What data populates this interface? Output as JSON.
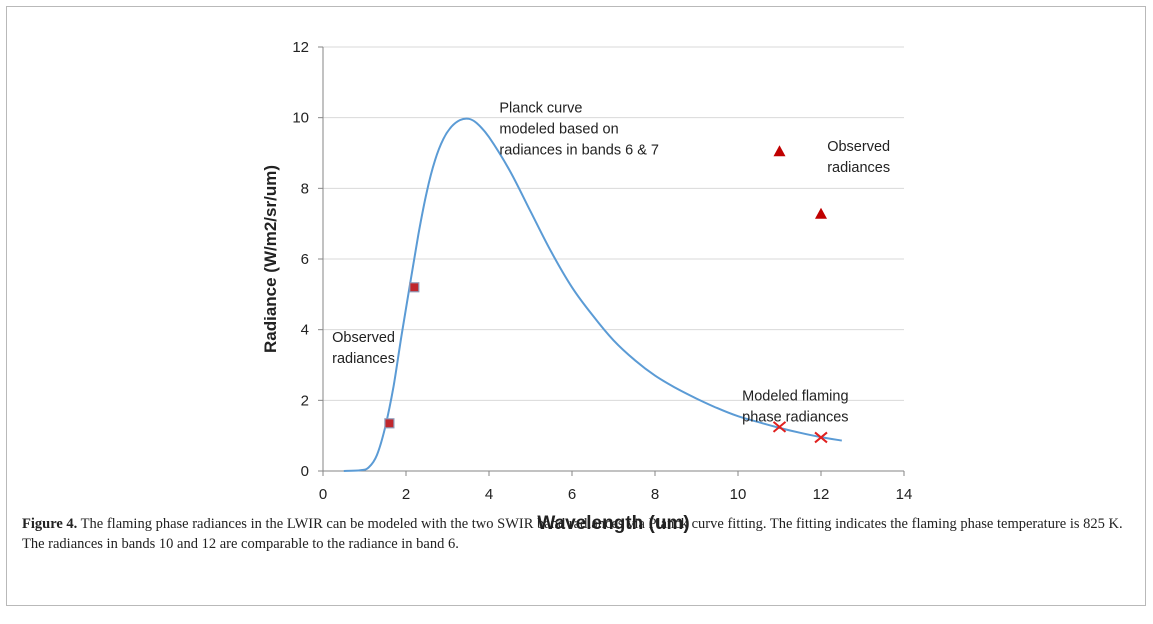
{
  "caption": {
    "label": "Figure 4.",
    "text": " The flaming phase radiances in the LWIR can be modeled with the two SWIR band radiances via Planck curve fitting. The fitting indicates the flaming phase temperature is 825 K. The radiances in bands 10 and 12 are comparable to the radiance in band 6."
  },
  "chart_data": {
    "type": "scatter",
    "title": "",
    "xlabel": "Wavelength (um)",
    "ylabel": "Radiance (W/m2/sr/um)",
    "xlim": [
      0,
      14
    ],
    "ylim": [
      0,
      12
    ],
    "xticks": [
      0,
      2,
      4,
      6,
      8,
      10,
      12,
      14
    ],
    "yticks": [
      0,
      2,
      4,
      6,
      8,
      10,
      12
    ],
    "grid": "horizontal",
    "colors": {
      "curve": "#5b9bd5",
      "square": "#c0272d",
      "triangle": "#c00000",
      "cross": "#e0201f",
      "grid": "#d9d9d9",
      "axis": "#868686"
    },
    "series": [
      {
        "type": "line",
        "x": [
          0.5,
          0.9,
          1.1,
          1.3,
          1.5,
          1.7,
          1.9,
          2.1,
          2.3,
          2.5,
          2.7,
          2.9,
          3.1,
          3.3,
          3.5,
          3.7,
          4.0,
          4.5,
          5.0,
          5.5,
          6.0,
          6.5,
          7.0,
          7.5,
          8.0,
          8.5,
          9.0,
          9.5,
          10.0,
          10.5,
          11.0,
          11.5,
          12.0,
          12.5
        ],
        "y": [
          0.0,
          0.02,
          0.1,
          0.45,
          1.25,
          2.4,
          3.9,
          5.3,
          6.7,
          7.9,
          8.8,
          9.4,
          9.75,
          9.93,
          9.97,
          9.85,
          9.45,
          8.5,
          7.35,
          6.2,
          5.2,
          4.4,
          3.7,
          3.15,
          2.7,
          2.35,
          2.05,
          1.78,
          1.55,
          1.38,
          1.22,
          1.08,
          0.96,
          0.86
        ]
      },
      {
        "type": "square",
        "x": [
          1.6,
          2.2
        ],
        "y": [
          1.35,
          5.2
        ]
      },
      {
        "type": "triangle",
        "x": [
          11.0,
          12.0
        ],
        "y": [
          9.05,
          7.28
        ]
      },
      {
        "type": "cross",
        "x": [
          11.0,
          12.0
        ],
        "y": [
          1.25,
          0.95
        ]
      }
    ],
    "annotations": [
      {
        "lines": [
          "Planck curve",
          "modeled based on",
          "radiances in bands 6 & 7"
        ],
        "x": 4.25,
        "y": 10.15
      },
      {
        "lines": [
          "Observed",
          "radiances"
        ],
        "x": 12.15,
        "y": 9.05
      },
      {
        "lines": [
          "Observed",
          "radiances"
        ],
        "x": 0.22,
        "y": 3.65
      },
      {
        "lines": [
          "Modeled flaming",
          "phase radiances"
        ],
        "x": 10.1,
        "y": 2.0
      }
    ]
  }
}
